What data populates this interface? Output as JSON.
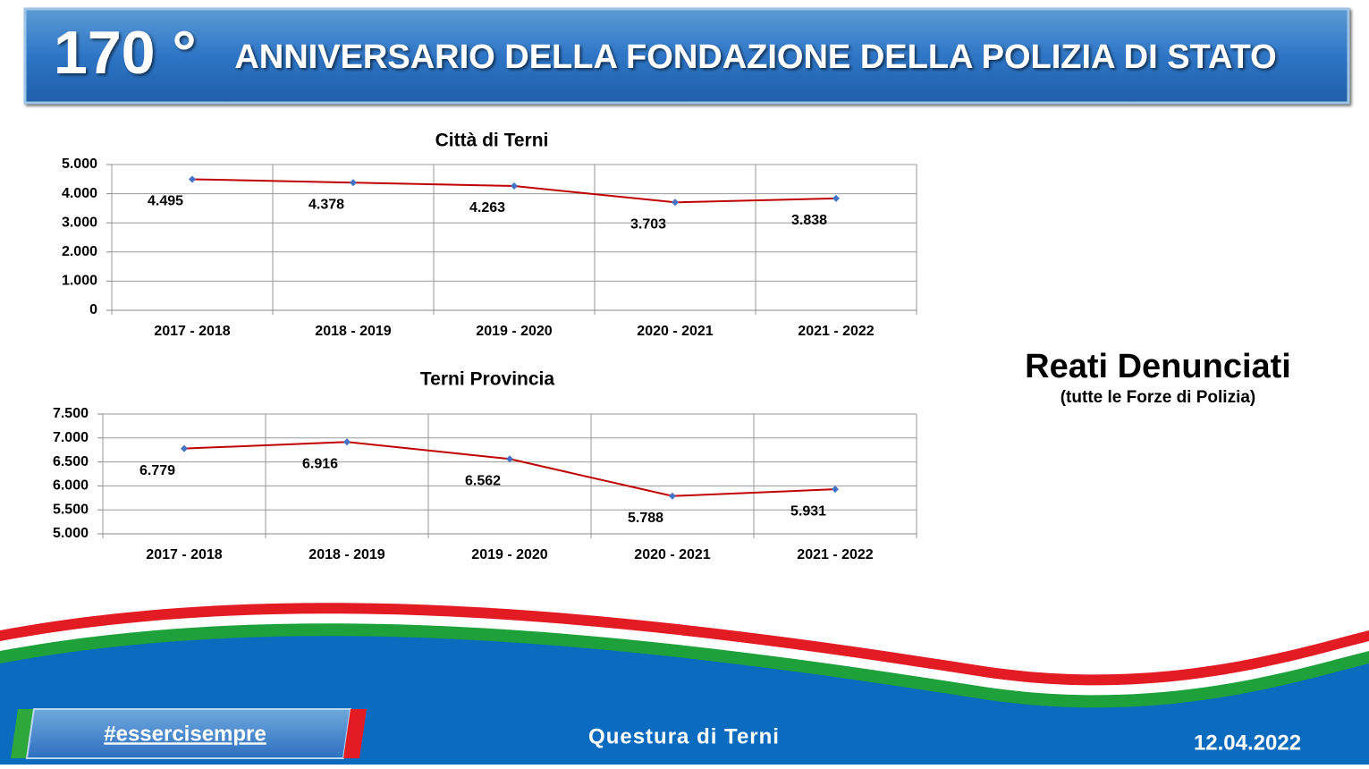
{
  "header": {
    "number": "170 °",
    "title": "ANNIVERSARIO DELLA FONDAZIONE DELLA POLIZIA DI STATO"
  },
  "chart_data": [
    {
      "type": "line",
      "title": "Città di Terni",
      "categories": [
        "2017 - 2018",
        "2018 - 2019",
        "2019 - 2020",
        "2020 - 2021",
        "2021 - 2022"
      ],
      "values": [
        4495,
        4378,
        4263,
        3703,
        3838
      ],
      "value_labels": [
        "4.495",
        "4.378",
        "4.263",
        "3.703",
        "3.838"
      ],
      "color": "#c00000",
      "marker_color": "#4472c4",
      "ylim": [
        0,
        5000
      ],
      "yticks": [
        0,
        {
          "value": 1000,
          "label": "1.000"
        },
        {
          "value": 2000,
          "label": "2.000"
        },
        {
          "value": 3000,
          "label": "3.000"
        },
        {
          "value": 4000,
          "label": "4.000"
        },
        {
          "value": 5000,
          "label": "5.000"
        }
      ],
      "grid": true
    },
    {
      "type": "line",
      "title": "Terni Provincia",
      "categories": [
        "2017 - 2018",
        "2018 - 2019",
        "2019 - 2020",
        "2020 - 2021",
        "2021 - 2022"
      ],
      "values": [
        6779,
        6916,
        6562,
        5788,
        5931
      ],
      "value_labels": [
        "6.779",
        "6.916",
        "6.562",
        "5.788",
        "5.931"
      ],
      "color": "#c00000",
      "marker_color": "#4472c4",
      "ylim": [
        5000,
        7500
      ],
      "yticks": [
        {
          "value": 5000,
          "label": "5.000"
        },
        {
          "value": 5500,
          "label": "5.500"
        },
        {
          "value": 6000,
          "label": "6.000"
        },
        {
          "value": 6500,
          "label": "6.500"
        },
        {
          "value": 7000,
          "label": "7.000"
        },
        {
          "value": 7500,
          "label": "7.500"
        }
      ],
      "grid": true
    }
  ],
  "side": {
    "title": "Reati Denunciati",
    "subtitle": "(tutte le Forze di Polizia)"
  },
  "footer": {
    "hashtag": "#essercisempre",
    "office": "Questura di Terni",
    "date": "12.04.2022"
  }
}
